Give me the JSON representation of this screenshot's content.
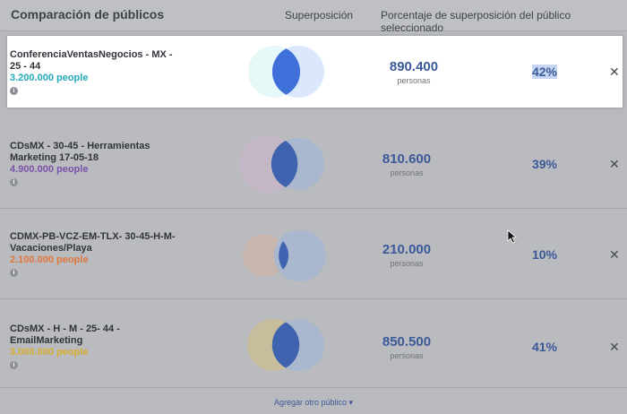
{
  "header": {
    "title": "Comparación de públicos",
    "col_overlap": "Superposición",
    "col_percent": "Porcentaje de superposición del público seleccionado"
  },
  "rows": [
    {
      "name_line1": "ConferenciaVentasNegocios - MX -",
      "name_line2": "25 - 44",
      "size": "3.200.000 people",
      "size_color": "#24a9b8",
      "overlap_count": "890.400",
      "overlap_unit": "personas",
      "percent": "42%",
      "selected": true
    },
    {
      "name_line1": "CDsMX - 30-45 - Herramientas",
      "name_line2": "Marketing 17-05-18",
      "size": "4.900.000 people",
      "size_color": "#7b52ab",
      "overlap_count": "810.600",
      "overlap_unit": "personas",
      "percent": "39%",
      "selected": false
    },
    {
      "name_line1": "CDMX-PB-VCZ-EM-TLX- 30-45-H-M-",
      "name_line2": "Vacaciones/Playa",
      "size": "2.100.000 people",
      "size_color": "#e0763c",
      "overlap_count": "210.000",
      "overlap_unit": "personas",
      "percent": "10%",
      "selected": false
    },
    {
      "name_line1": "CDsMX - H - M - 25- 44 -",
      "name_line2": "EmailMarketing",
      "size": "3.000.000 people",
      "size_color": "#d8ac2c",
      "overlap_count": "850.500",
      "overlap_unit": "personas",
      "percent": "41%",
      "selected": false
    }
  ],
  "footer": {
    "add_audience": "Agregar otro público ▾"
  },
  "icons": {
    "info": "info-icon",
    "close": "close-icon",
    "cursor": "mouse-cursor-icon"
  }
}
